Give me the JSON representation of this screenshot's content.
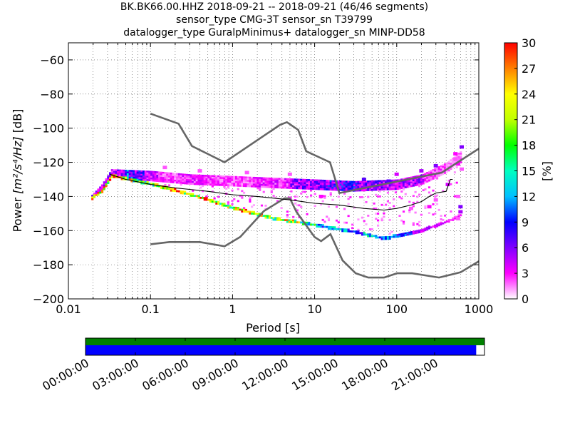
{
  "header": {
    "title_line1": "BK.BK66.00.HHZ   2018-09-21 -- 2018-09-21  (46/46 segments)",
    "title_line2": "sensor_type CMG-3T sensor_sn T39799",
    "title_line3": "datalogger_type GuralpMinimus+ datalogger_sn MINP-DD58"
  },
  "chart_data": [
    {
      "type": "heatmap",
      "title": "",
      "xlabel": "Period [s]",
      "ylabel_prefix": "Power ",
      "ylabel_math": "[m²/s⁴/Hz]",
      "ylabel_suffix": " [dB]",
      "x_scale": "log",
      "xlim": [
        0.01,
        1000
      ],
      "ylim": [
        -200,
        -50
      ],
      "x_ticks": [
        {
          "value": 0.01,
          "label": "0.01"
        },
        {
          "value": 0.1,
          "label": "0.1"
        },
        {
          "value": 1,
          "label": "1"
        },
        {
          "value": 10,
          "label": "10"
        },
        {
          "value": 100,
          "label": "100"
        },
        {
          "value": 1000,
          "label": "1000"
        }
      ],
      "y_ticks": [
        {
          "value": -60,
          "label": "−60"
        },
        {
          "value": -80,
          "label": "−80"
        },
        {
          "value": -100,
          "label": "−100"
        },
        {
          "value": -120,
          "label": "−120"
        },
        {
          "value": -140,
          "label": "−140"
        },
        {
          "value": -160,
          "label": "−160"
        },
        {
          "value": -180,
          "label": "−180"
        },
        {
          "value": -200,
          "label": "−200"
        }
      ],
      "grid": "dotted",
      "colorbar": {
        "label": "[%]",
        "range": [
          0,
          30
        ],
        "ticks": [
          "0",
          "3",
          "6",
          "9",
          "12",
          "15",
          "18",
          "21",
          "24",
          "27",
          "30"
        ],
        "colormap": [
          "#ffffff",
          "#ff00ff",
          "#8000ff",
          "#0000ff",
          "#00c0ff",
          "#00ffc0",
          "#00ff00",
          "#c0ff00",
          "#ffff00",
          "#ff8000",
          "#ff0000"
        ]
      },
      "band_upper": [
        {
          "period": 0.019,
          "db": -139
        },
        {
          "period": 0.025,
          "db": -133
        },
        {
          "period": 0.033,
          "db": -124
        },
        {
          "period": 0.1,
          "db": -125
        },
        {
          "period": 0.3,
          "db": -127
        },
        {
          "period": 1,
          "db": -128
        },
        {
          "period": 3,
          "db": -129
        },
        {
          "period": 10,
          "db": -130
        },
        {
          "period": 30,
          "db": -131
        },
        {
          "period": 100,
          "db": -130
        },
        {
          "period": 200,
          "db": -127
        },
        {
          "period": 400,
          "db": -120
        },
        {
          "period": 600,
          "db": -113
        }
      ],
      "band_lower": [
        {
          "period": 0.019,
          "db": -141
        },
        {
          "period": 0.025,
          "db": -137
        },
        {
          "period": 0.033,
          "db": -128
        },
        {
          "period": 0.1,
          "db": -133
        },
        {
          "period": 0.3,
          "db": -139
        },
        {
          "period": 1,
          "db": -147
        },
        {
          "period": 3,
          "db": -153
        },
        {
          "period": 10,
          "db": -157
        },
        {
          "period": 30,
          "db": -161
        },
        {
          "period": 70,
          "db": -165
        },
        {
          "period": 100,
          "db": -163
        },
        {
          "period": 200,
          "db": -160
        },
        {
          "period": 400,
          "db": -155
        },
        {
          "period": 600,
          "db": -151
        }
      ],
      "upper_hits": [
        {
          "period": 0.04,
          "db": -126,
          "pct": 6
        },
        {
          "period": 0.05,
          "db": -127,
          "pct": 12
        },
        {
          "period": 0.07,
          "db": -128,
          "pct": 9
        },
        {
          "period": 0.1,
          "db": -129,
          "pct": 5
        },
        {
          "period": 0.15,
          "db": -127,
          "pct": 3
        },
        {
          "period": 0.3,
          "db": -128,
          "pct": 4
        },
        {
          "period": 1,
          "db": -130,
          "pct": 3
        },
        {
          "period": 3,
          "db": -131,
          "pct": 4
        },
        {
          "period": 8,
          "db": -132,
          "pct": 7
        },
        {
          "period": 20,
          "db": -133,
          "pct": 9
        },
        {
          "period": 50,
          "db": -132,
          "pct": 7
        },
        {
          "period": 150,
          "db": -129,
          "pct": 6
        },
        {
          "period": 300,
          "db": -125,
          "pct": 3
        },
        {
          "period": 500,
          "db": -118,
          "pct": 2
        }
      ],
      "lower_hits": [
        {
          "period": 0.04,
          "db": -129,
          "pct": 27
        },
        {
          "period": 0.05,
          "db": -131,
          "pct": 24
        },
        {
          "period": 0.07,
          "db": -133,
          "pct": 18
        },
        {
          "period": 0.1,
          "db": -135,
          "pct": 21
        },
        {
          "period": 0.15,
          "db": -137,
          "pct": 26
        },
        {
          "period": 0.2,
          "db": -139,
          "pct": 28
        },
        {
          "period": 0.3,
          "db": -141,
          "pct": 24
        },
        {
          "period": 0.5,
          "db": -144,
          "pct": 27
        },
        {
          "period": 0.8,
          "db": -146,
          "pct": 22
        },
        {
          "period": 1.2,
          "db": -148,
          "pct": 27
        },
        {
          "period": 2,
          "db": -151,
          "pct": 25
        },
        {
          "period": 3,
          "db": -153,
          "pct": 21
        },
        {
          "period": 5,
          "db": -155,
          "pct": 24
        },
        {
          "period": 8,
          "db": -157,
          "pct": 18
        },
        {
          "period": 12,
          "db": -158,
          "pct": 12
        },
        {
          "period": 20,
          "db": -160,
          "pct": 14
        },
        {
          "period": 30,
          "db": -161,
          "pct": 11
        },
        {
          "period": 50,
          "db": -163,
          "pct": 14
        },
        {
          "period": 80,
          "db": -164,
          "pct": 12
        },
        {
          "period": 120,
          "db": -162,
          "pct": 10
        },
        {
          "period": 200,
          "db": -160,
          "pct": 5
        },
        {
          "period": 300,
          "db": -157,
          "pct": 4
        },
        {
          "period": 500,
          "db": -154,
          "pct": 3
        }
      ],
      "high_period_patches": [
        {
          "period": 520,
          "db": -115,
          "pct": 3
        },
        {
          "period": 520,
          "db": -118,
          "pct": 2
        },
        {
          "period": 560,
          "db": -121,
          "pct": 3
        },
        {
          "period": 620,
          "db": -111,
          "pct": 6
        },
        {
          "period": 620,
          "db": -124,
          "pct": 2
        },
        {
          "period": 420,
          "db": -133,
          "pct": 4
        },
        {
          "period": 560,
          "db": -140,
          "pct": 2
        },
        {
          "period": 600,
          "db": -146,
          "pct": 6
        },
        {
          "period": 600,
          "db": -149,
          "pct": 5
        },
        {
          "period": 560,
          "db": -153,
          "pct": 2
        },
        {
          "period": 300,
          "db": -142,
          "pct": 2
        },
        {
          "period": 250,
          "db": -146,
          "pct": 3
        },
        {
          "period": 150,
          "db": -147,
          "pct": 2
        },
        {
          "period": 80,
          "db": -131,
          "pct": 7
        },
        {
          "period": 40,
          "db": -136,
          "pct": 3
        },
        {
          "period": 12,
          "db": -140,
          "pct": 3
        },
        {
          "period": 5,
          "db": -141,
          "pct": 2
        },
        {
          "period": 0.15,
          "db": -123,
          "pct": 2
        },
        {
          "period": 0.4,
          "db": -125,
          "pct": 2
        },
        {
          "period": 1.5,
          "db": -126,
          "pct": 2
        },
        {
          "period": 5,
          "db": -127,
          "pct": 2
        },
        {
          "period": 40,
          "db": -130,
          "pct": 7
        },
        {
          "period": 100,
          "db": -127,
          "pct": 4
        },
        {
          "period": 200,
          "db": -125,
          "pct": 5
        },
        {
          "period": 300,
          "db": -122,
          "pct": 6
        }
      ],
      "mode_curve": [
        {
          "period": 0.032,
          "db": -127
        },
        {
          "period": 0.05,
          "db": -130
        },
        {
          "period": 0.1,
          "db": -133
        },
        {
          "period": 0.2,
          "db": -135
        },
        {
          "period": 0.5,
          "db": -137
        },
        {
          "period": 1,
          "db": -139
        },
        {
          "period": 2,
          "db": -140
        },
        {
          "period": 5,
          "db": -142
        },
        {
          "period": 10,
          "db": -144
        },
        {
          "period": 20,
          "db": -145
        },
        {
          "period": 40,
          "db": -147
        },
        {
          "period": 70,
          "db": -148
        },
        {
          "period": 100,
          "db": -147
        },
        {
          "period": 150,
          "db": -145
        },
        {
          "period": 200,
          "db": -143
        },
        {
          "period": 250,
          "db": -140
        },
        {
          "period": 300,
          "db": -138
        },
        {
          "period": 400,
          "db": -137
        },
        {
          "period": 450,
          "db": -130
        },
        {
          "period": 480,
          "db": -130
        }
      ],
      "nhnm": [
        {
          "period": 0.1,
          "db": -91.5
        },
        {
          "period": 0.22,
          "db": -97.4
        },
        {
          "period": 0.32,
          "db": -110.5
        },
        {
          "period": 0.8,
          "db": -120
        },
        {
          "period": 3.8,
          "db": -98
        },
        {
          "period": 4.6,
          "db": -96.5
        },
        {
          "period": 6.3,
          "db": -101
        },
        {
          "period": 7.9,
          "db": -113.5
        },
        {
          "period": 15.4,
          "db": -120
        },
        {
          "period": 20,
          "db": -138
        },
        {
          "period": 354.8,
          "db": -126
        },
        {
          "period": 1000,
          "db": -112
        }
      ],
      "nlnm": [
        {
          "period": 0.1,
          "db": -168
        },
        {
          "period": 0.17,
          "db": -166.7
        },
        {
          "period": 0.4,
          "db": -166.7
        },
        {
          "period": 0.8,
          "db": -169.2
        },
        {
          "period": 1.24,
          "db": -163.7
        },
        {
          "period": 2.4,
          "db": -148.6
        },
        {
          "period": 4.3,
          "db": -141.1
        },
        {
          "period": 5,
          "db": -141.1
        },
        {
          "period": 6,
          "db": -149
        },
        {
          "period": 10,
          "db": -163.8
        },
        {
          "period": 12,
          "db": -166.2
        },
        {
          "period": 15.6,
          "db": -162.1
        },
        {
          "period": 21.9,
          "db": -177.5
        },
        {
          "period": 31.6,
          "db": -185
        },
        {
          "period": 45,
          "db": -187.5
        },
        {
          "period": 70,
          "db": -187.5
        },
        {
          "period": 101,
          "db": -185
        },
        {
          "period": 154,
          "db": -185
        },
        {
          "period": 328,
          "db": -187.5
        },
        {
          "period": 600,
          "db": -184.4
        },
        {
          "period": 1000,
          "db": -178
        }
      ]
    },
    {
      "type": "timeline",
      "title": "",
      "time_ticks": [
        "00:00:00",
        "03:00:00",
        "06:00:00",
        "09:00:00",
        "12:00:00",
        "15:00:00",
        "18:00:00",
        "21:00:00"
      ],
      "span_hours": 24,
      "data_coverage_hours": [
        0,
        24
      ],
      "psd_coverage_hours": [
        0,
        23.5
      ],
      "data_color": "#008000",
      "psd_color": "#0000ff"
    }
  ]
}
